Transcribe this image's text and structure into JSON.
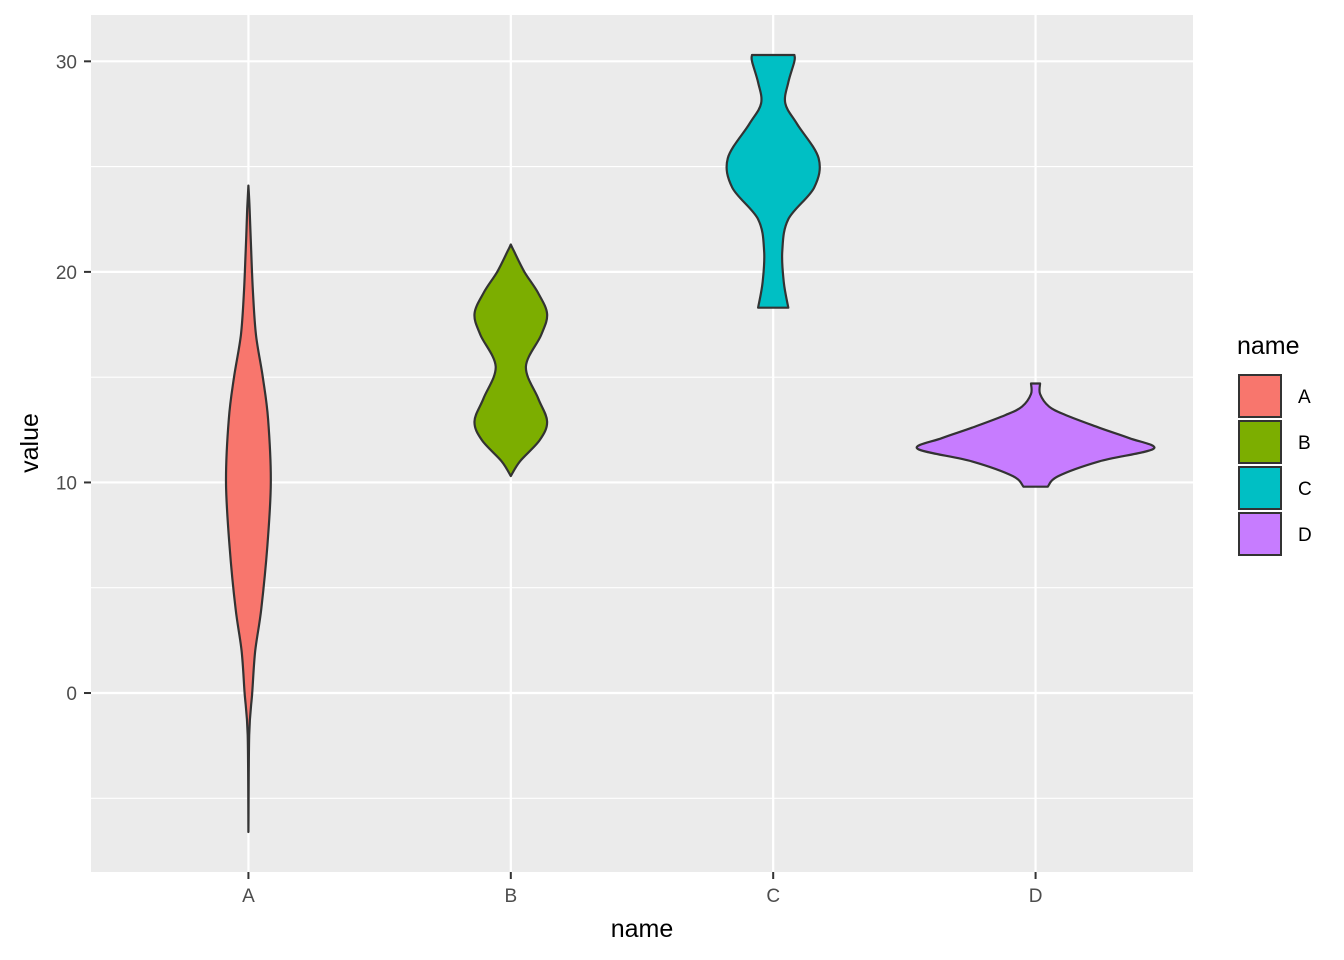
{
  "chart_data": {
    "type": "violin",
    "xlabel": "name",
    "ylabel": "value",
    "categories": [
      "A",
      "B",
      "C",
      "D"
    ],
    "ylim": [
      -8.5,
      32.2
    ],
    "yticks": [
      0,
      10,
      20,
      30
    ],
    "grid": true,
    "legend": {
      "title": "name",
      "placement": "right",
      "entries": [
        "A",
        "B",
        "C",
        "D"
      ]
    },
    "colors": {
      "A": "#F8766D",
      "B": "#7CAE00",
      "C": "#00BFC4",
      "D": "#C77CFF"
    },
    "violins": [
      {
        "name": "A",
        "range": [
          -6.6,
          24.1
        ],
        "profile": [
          [
            -6.6,
            0.0
          ],
          [
            -2,
            0.005
          ],
          [
            0,
            0.025
          ],
          [
            2,
            0.045
          ],
          [
            4,
            0.085
          ],
          [
            7,
            0.125
          ],
          [
            10,
            0.148
          ],
          [
            13,
            0.13
          ],
          [
            15,
            0.095
          ],
          [
            17,
            0.05
          ],
          [
            19,
            0.03
          ],
          [
            21,
            0.018
          ],
          [
            23,
            0.008
          ],
          [
            24.1,
            0.0
          ]
        ]
      },
      {
        "name": "B",
        "range": [
          10.3,
          21.3
        ],
        "profile": [
          [
            10.3,
            0.0
          ],
          [
            11,
            0.06
          ],
          [
            12,
            0.19
          ],
          [
            12.9,
            0.24
          ],
          [
            14,
            0.18
          ],
          [
            15.5,
            0.1
          ],
          [
            17,
            0.2
          ],
          [
            18,
            0.24
          ],
          [
            19,
            0.18
          ],
          [
            20,
            0.09
          ],
          [
            21,
            0.02
          ],
          [
            21.3,
            0.0
          ]
        ]
      },
      {
        "name": "C",
        "range": [
          18.3,
          30.3
        ],
        "profile": [
          [
            18.3,
            0.1
          ],
          [
            19.5,
            0.07
          ],
          [
            21,
            0.06
          ],
          [
            22.5,
            0.1
          ],
          [
            24,
            0.27
          ],
          [
            25.4,
            0.3
          ],
          [
            27,
            0.16
          ],
          [
            28,
            0.08
          ],
          [
            29,
            0.1
          ],
          [
            30,
            0.14
          ],
          [
            30.3,
            0.14
          ]
        ]
      },
      {
        "name": "D",
        "range": [
          9.8,
          14.7
        ],
        "profile": [
          [
            9.8,
            0.08
          ],
          [
            10.3,
            0.15
          ],
          [
            11,
            0.42
          ],
          [
            11.6,
            0.78
          ],
          [
            12.1,
            0.62
          ],
          [
            12.6,
            0.42
          ],
          [
            13.2,
            0.2
          ],
          [
            13.6,
            0.09
          ],
          [
            14.2,
            0.03
          ],
          [
            14.7,
            0.03
          ]
        ]
      }
    ]
  }
}
